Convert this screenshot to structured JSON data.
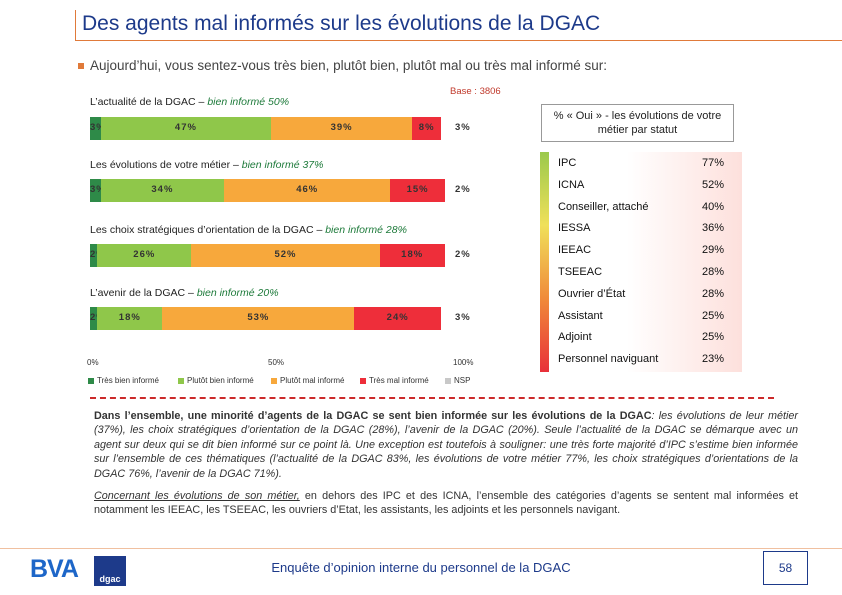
{
  "header": {
    "title": "Des agents mal informés sur les évolutions de la DGAC",
    "bullet": "Aujourd’hui, vous sentez-vous très bien, plutôt bien, plutôt mal ou très mal informé sur:",
    "base": "Base : 3806"
  },
  "colors": {
    "tres_bien": "#2e8a48",
    "plutot_bien": "#8fc74a",
    "plutot_mal": "#f7a83c",
    "tres_mal": "#ee2e3a",
    "nsp": "#c8c8c8",
    "accent": "#e07a3a",
    "brand": "#1d3a8a"
  },
  "chart_data": [
    {
      "type": "bar",
      "orientation": "horizontal",
      "stacked": true,
      "title_prefix": "L’actualité de la DGAC – ",
      "title_highlight": "bien informé 50%",
      "categories": [
        "Très bien informé",
        "Plutôt bien informé",
        "Plutôt mal informé",
        "Très mal informé",
        "NSP"
      ],
      "values": [
        3,
        47,
        39,
        8,
        3
      ],
      "labels": [
        "3%",
        "47%",
        "39%",
        "8%",
        "3%"
      ]
    },
    {
      "type": "bar",
      "orientation": "horizontal",
      "stacked": true,
      "title_prefix": "Les évolutions de votre métier – ",
      "title_highlight": "bien informé 37%",
      "categories": [
        "Très bien informé",
        "Plutôt bien informé",
        "Plutôt mal informé",
        "Très mal informé",
        "NSP"
      ],
      "values": [
        3,
        34,
        46,
        15,
        2
      ],
      "labels": [
        "3%",
        "34%",
        "46%",
        "15%",
        "2%"
      ]
    },
    {
      "type": "bar",
      "orientation": "horizontal",
      "stacked": true,
      "title_prefix": "Les choix stratégiques d’orientation de la DGAC – ",
      "title_highlight": "bien informé 28%",
      "categories": [
        "Très bien informé",
        "Plutôt bien informé",
        "Plutôt mal informé",
        "Très mal informé",
        "NSP"
      ],
      "values": [
        2,
        26,
        52,
        18,
        2
      ],
      "labels": [
        "2%",
        "26%",
        "52%",
        "18%",
        "2%"
      ]
    },
    {
      "type": "bar",
      "orientation": "horizontal",
      "stacked": true,
      "title_prefix": "L’avenir de la DGAC – ",
      "title_highlight": "bien informé 20%",
      "categories": [
        "Très bien informé",
        "Plutôt bien informé",
        "Plutôt mal informé",
        "Très mal informé",
        "NSP"
      ],
      "values": [
        2,
        18,
        53,
        24,
        3
      ],
      "labels": [
        "2%",
        "18%",
        "53%",
        "24%",
        "3%"
      ]
    }
  ],
  "axis": {
    "ticks": [
      "0%",
      "50%",
      "100%"
    ],
    "xlim": [
      0,
      100
    ]
  },
  "legend": [
    "Très bien informé",
    "Plutôt bien informé",
    "Plutôt mal informé",
    "Très mal informé",
    "NSP"
  ],
  "status_table": {
    "title": "% « Oui » - les évolutions de votre métier par statut",
    "rows": [
      {
        "label": "IPC",
        "value": "77%"
      },
      {
        "label": "ICNA",
        "value": "52%"
      },
      {
        "label": "Conseiller, attaché",
        "value": "40%"
      },
      {
        "label": "IESSA",
        "value": "36%"
      },
      {
        "label": "IEEAC",
        "value": "29%"
      },
      {
        "label": "TSEEAC",
        "value": "28%"
      },
      {
        "label": "Ouvrier d’État",
        "value": "28%"
      },
      {
        "label": "Assistant",
        "value": "25%"
      },
      {
        "label": "Adjoint",
        "value": "25%"
      },
      {
        "label": "Personnel naviguant",
        "value": "23%"
      }
    ]
  },
  "commentary": {
    "p1_bold": "Dans l’ensemble, une minorité d’agents de la DGAC se sent bien informée sur les évolutions de la DGAC",
    "p1_rest": ": les évolutions de leur métier (37%), les choix stratégiques d’orientation de la DGAC (28%), l’avenir de la DGAC (20%). Seule l’actualité de la DGAC se démarque avec un agent sur deux qui se dit bien informé sur ce point là. Une exception est toutefois à souligner: une très forte majorité d’IPC s’estime bien informée sur l’ensemble de ces thématiques (l’actualité de la DGAC 83%, les évolutions de votre métier 77%, les choix stratégiques d’orientations de la DGAC 76%, l’avenir de la DGAC 71%).",
    "p2_underline": "Concernant les évolutions de son métier,",
    "p2_rest": " en dehors des IPC et des ICNA, l’ensemble des catégories d’agents se sentent mal informées et notamment les IEEAC, les TSEEAC, les ouvriers d’Etat, les assistants, les adjoints et les personnels navigant."
  },
  "footer": {
    "text": "Enquête d’opinion interne du personnel de la DGAC",
    "page": "58",
    "logo_bva": "BVA",
    "logo_dgac": "dgac"
  }
}
